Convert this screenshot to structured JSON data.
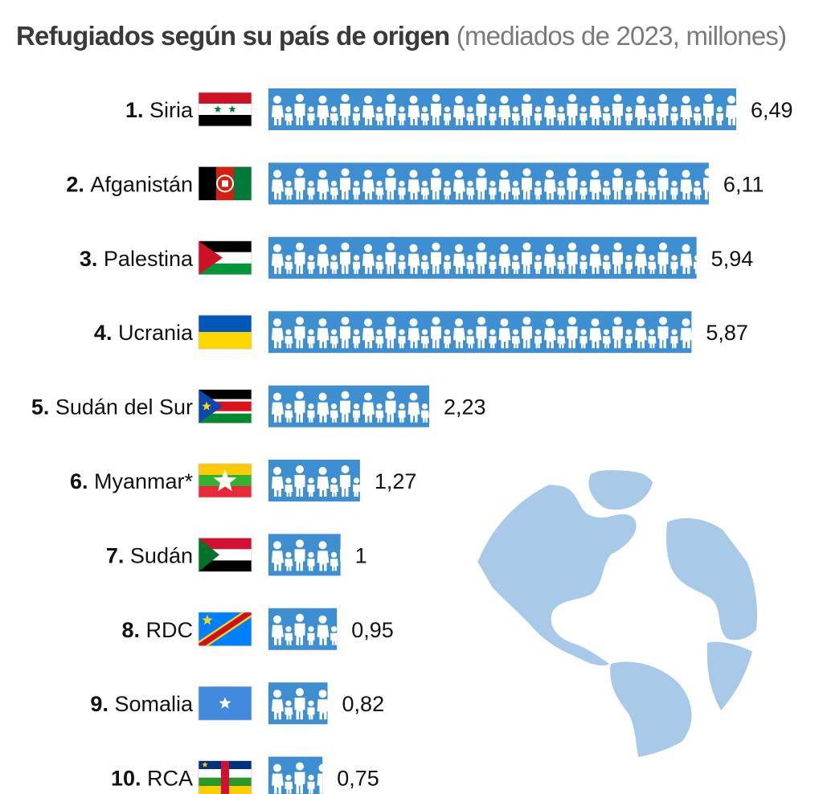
{
  "header": {
    "title_main": "Refugiados según su país de origen",
    "title_sub": "(mediados de 2023, millones)"
  },
  "colors": {
    "bar": "#3d8fd1",
    "figure": "#ffffff",
    "globe_land": "#a9c9e8",
    "text": "#111111"
  },
  "chart_data": {
    "type": "bar",
    "orientation": "horizontal",
    "title": "Refugiados según su país de origen",
    "subtitle": "(mediados de 2023, millones)",
    "bar_style": "pictogram-people",
    "categories": [
      "Siria",
      "Afganistán",
      "Palestina",
      "Ucrania",
      "Sudán del Sur",
      "Myanmar*",
      "Sudán",
      "RDC",
      "Somalia",
      "RCA"
    ],
    "ranks": [
      "1.",
      "2.",
      "3.",
      "4.",
      "5.",
      "6.",
      "7.",
      "8.",
      "9.",
      "10."
    ],
    "values": [
      6.49,
      6.11,
      5.94,
      5.87,
      2.23,
      1.27,
      1,
      0.95,
      0.82,
      0.75
    ],
    "value_labels": [
      "6,49",
      "6,11",
      "5,94",
      "5,87",
      "2,23",
      "1,27",
      "1",
      "0,95",
      "0,82",
      "0,75"
    ],
    "flag_icons": [
      "syria-flag-icon",
      "afghanistan-flag-icon",
      "palestine-flag-icon",
      "ukraine-flag-icon",
      "south-sudan-flag-icon",
      "myanmar-flag-icon",
      "sudan-flag-icon",
      "drc-flag-icon",
      "somalia-flag-icon",
      "car-flag-icon"
    ],
    "xlim": [
      0,
      6.49
    ]
  }
}
